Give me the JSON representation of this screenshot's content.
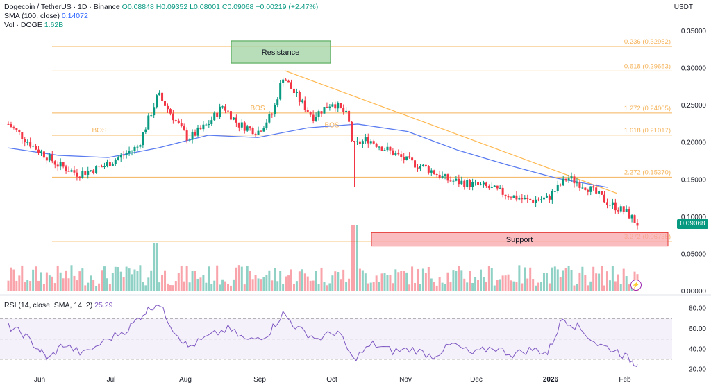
{
  "header": {
    "symbol": "Dogecoin / TetherUS · 1D · Binance",
    "ohlc": "O0.08848 H0.09352 L0.08001 C0.09068 +0.00219 (+2.47%)",
    "sma_label": "SMA (100, close)",
    "sma_value": "0.14072",
    "vol_label": "Vol · DOGE",
    "vol_value": "1.62B",
    "currency": "USDT",
    "last_price": "0.09068",
    "rsi_label": "RSI (14, close, SMA, 14, 2)",
    "rsi_value": "25.29"
  },
  "colors": {
    "up": "#089981",
    "down": "#f23645",
    "sma": "#5b7cf0",
    "fib": "#f5b35a",
    "trend": "#ffb74d",
    "resistance_fill": "#a5d6a7",
    "resistance_stroke": "#43a047",
    "support_fill": "#f8a5a9",
    "support_stroke": "#e53935",
    "rsi_line": "#7e57c2",
    "rsi_band": "#ede7f6"
  },
  "icons": {
    "bolt": "lightning-icon"
  },
  "chart_data": {
    "type": "candlestick",
    "y_axis": {
      "ticks": [
        0.35,
        0.3,
        0.25,
        0.2,
        0.15,
        0.1,
        0.05,
        0.0
      ],
      "tick_labels": [
        "0.35000",
        "0.30000",
        "0.25000",
        "0.20000",
        "0.15000",
        "0.10000",
        "0.05000",
        "0.00000"
      ],
      "ylim": [
        0.0,
        0.35
      ]
    },
    "x_axis": {
      "labels": [
        "Jun",
        "Jul",
        "Aug",
        "Sep",
        "Oct",
        "Nov",
        "Dec",
        "2026",
        "Feb"
      ]
    },
    "price_path": [
      {
        "month": 0,
        "value": 0.225
      },
      {
        "month": 0.5,
        "value": 0.195
      },
      {
        "month": 1.0,
        "value": 0.17
      },
      {
        "month": 1.4,
        "value": 0.158
      },
      {
        "month": 1.9,
        "value": 0.168
      },
      {
        "month": 2.6,
        "value": 0.195
      },
      {
        "month": 3.0,
        "value": 0.265
      },
      {
        "month": 3.3,
        "value": 0.235
      },
      {
        "month": 3.6,
        "value": 0.205
      },
      {
        "month": 4.0,
        "value": 0.225
      },
      {
        "month": 4.3,
        "value": 0.25
      },
      {
        "month": 4.6,
        "value": 0.225
      },
      {
        "month": 5.0,
        "value": 0.215
      },
      {
        "month": 5.3,
        "value": 0.24
      },
      {
        "month": 5.5,
        "value": 0.29
      },
      {
        "month": 5.8,
        "value": 0.26
      },
      {
        "month": 6.1,
        "value": 0.235
      },
      {
        "month": 6.5,
        "value": 0.255
      },
      {
        "month": 6.8,
        "value": 0.235
      },
      {
        "month": 6.9,
        "value": 0.195
      },
      {
        "month": 7.2,
        "value": 0.205
      },
      {
        "month": 7.6,
        "value": 0.19
      },
      {
        "month": 8.0,
        "value": 0.175
      },
      {
        "month": 8.4,
        "value": 0.165
      },
      {
        "month": 8.8,
        "value": 0.15
      },
      {
        "month": 9.2,
        "value": 0.145
      },
      {
        "month": 9.6,
        "value": 0.14
      },
      {
        "month": 10.0,
        "value": 0.13
      },
      {
        "month": 10.4,
        "value": 0.122
      },
      {
        "month": 10.8,
        "value": 0.125
      },
      {
        "month": 11.2,
        "value": 0.153
      },
      {
        "month": 11.6,
        "value": 0.14
      },
      {
        "month": 12.0,
        "value": 0.12
      },
      {
        "month": 12.4,
        "value": 0.105
      },
      {
        "month": 12.6,
        "value": 0.091
      }
    ],
    "sma_100": [
      {
        "month": 0,
        "value": 0.193
      },
      {
        "month": 1,
        "value": 0.183
      },
      {
        "month": 2,
        "value": 0.18
      },
      {
        "month": 3,
        "value": 0.193
      },
      {
        "month": 4,
        "value": 0.21
      },
      {
        "month": 5,
        "value": 0.207
      },
      {
        "month": 6,
        "value": 0.22
      },
      {
        "month": 7,
        "value": 0.225
      },
      {
        "month": 8,
        "value": 0.215
      },
      {
        "month": 9,
        "value": 0.19
      },
      {
        "month": 10,
        "value": 0.17
      },
      {
        "month": 11,
        "value": 0.152
      },
      {
        "month": 12,
        "value": 0.14
      }
    ],
    "fib_levels": [
      {
        "label": "0.236 (0.32952)",
        "value": 0.3295
      },
      {
        "label": "0.618 (0.29653)",
        "value": 0.2965
      },
      {
        "label": "1.272 (0.24005)",
        "value": 0.24
      },
      {
        "label": "1.618 (0.21017)",
        "value": 0.2102
      },
      {
        "label": "2.272 (0.15370)",
        "value": 0.1537
      },
      {
        "label": "3.272 (0.06735)",
        "value": 0.0673
      }
    ],
    "annotations": {
      "resistance": {
        "label": "Resistance",
        "low": 0.307,
        "high": 0.337
      },
      "support": {
        "label": "Support",
        "low": 0.061,
        "high": 0.079
      },
      "bos": [
        "BOS",
        "BOS",
        "BOS"
      ]
    },
    "rsi": {
      "ticks": [
        80,
        60,
        40,
        20
      ],
      "tick_labels": [
        "80.00",
        "60.00",
        "40.00",
        "20.00"
      ],
      "band": [
        30,
        70
      ],
      "mid": 50,
      "values": [
        {
          "month": 0,
          "value": 62
        },
        {
          "month": 0.3,
          "value": 55
        },
        {
          "month": 0.6,
          "value": 40
        },
        {
          "month": 0.8,
          "value": 30
        },
        {
          "month": 1.1,
          "value": 45
        },
        {
          "month": 1.5,
          "value": 35
        },
        {
          "month": 2.0,
          "value": 50
        },
        {
          "month": 2.4,
          "value": 60
        },
        {
          "month": 2.7,
          "value": 75
        },
        {
          "month": 3.0,
          "value": 86
        },
        {
          "month": 3.3,
          "value": 60
        },
        {
          "month": 3.6,
          "value": 42
        },
        {
          "month": 4.0,
          "value": 52
        },
        {
          "month": 4.4,
          "value": 60
        },
        {
          "month": 4.8,
          "value": 48
        },
        {
          "month": 5.2,
          "value": 55
        },
        {
          "month": 5.5,
          "value": 75
        },
        {
          "month": 5.8,
          "value": 60
        },
        {
          "month": 6.2,
          "value": 50
        },
        {
          "month": 6.6,
          "value": 58
        },
        {
          "month": 6.9,
          "value": 30
        },
        {
          "month": 7.3,
          "value": 45
        },
        {
          "month": 7.7,
          "value": 38
        },
        {
          "month": 8.1,
          "value": 40
        },
        {
          "month": 8.5,
          "value": 33
        },
        {
          "month": 8.9,
          "value": 45
        },
        {
          "month": 9.3,
          "value": 35
        },
        {
          "month": 9.7,
          "value": 42
        },
        {
          "month": 10.1,
          "value": 35
        },
        {
          "month": 10.5,
          "value": 40
        },
        {
          "month": 10.8,
          "value": 36
        },
        {
          "month": 11.1,
          "value": 70
        },
        {
          "month": 11.4,
          "value": 62
        },
        {
          "month": 11.8,
          "value": 45
        },
        {
          "month": 12.2,
          "value": 38
        },
        {
          "month": 12.5,
          "value": 28
        },
        {
          "month": 12.6,
          "value": 25
        }
      ]
    }
  }
}
